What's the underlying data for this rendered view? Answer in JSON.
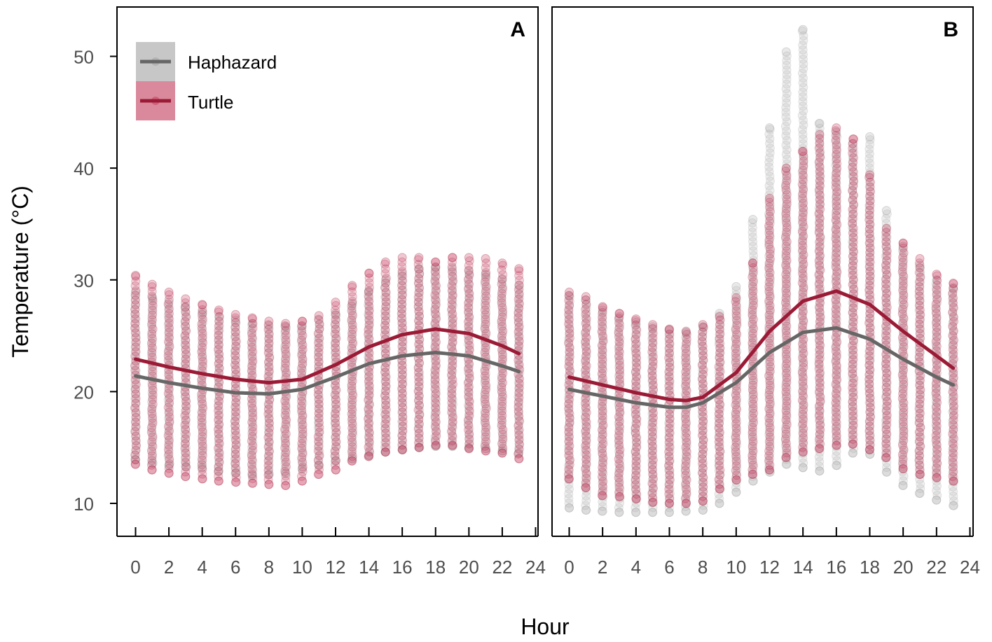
{
  "figure": {
    "ylabel": "Temperature (°C)",
    "xlabel": "Hour"
  },
  "colors": {
    "haphazard": "#666666",
    "haphazard_points": "#a9a9a9",
    "turtle": "#9b1b36",
    "turtle_points": "#c1244a",
    "axis": "#000000",
    "tick_text": "#4d4d4d"
  },
  "chart_data": [
    {
      "panel": "A",
      "type": "scatter",
      "xlim": [
        0,
        24
      ],
      "ylim": [
        7.0,
        54.5
      ],
      "x_ticks": [
        0,
        2,
        4,
        6,
        8,
        10,
        12,
        14,
        16,
        18,
        20,
        22,
        24
      ],
      "y_ticks": [
        10,
        20,
        30,
        40,
        50
      ],
      "grid": false,
      "legend": {
        "placement": "top-left",
        "entries": [
          "Haphazard",
          "Turtle"
        ]
      },
      "series": [
        {
          "name": "Haphazard",
          "fit_line": {
            "x": [
              0,
              2,
              4,
              6,
              8,
              10,
              12,
              14,
              16,
              18,
              20,
              22,
              23
            ],
            "y": [
              21.4,
              20.8,
              20.3,
              19.9,
              19.8,
              20.2,
              21.3,
              22.5,
              23.2,
              23.5,
              23.2,
              22.3,
              21.8
            ]
          },
          "point_range": {
            "x": [
              0,
              1,
              2,
              3,
              4,
              5,
              6,
              7,
              8,
              9,
              10,
              11,
              12,
              13,
              14,
              15,
              16,
              17,
              18,
              19,
              20,
              21,
              22,
              23
            ],
            "min": [
              13.9,
              13.6,
              13.4,
              13.3,
              13.2,
              12.9,
              12.7,
              12.5,
              12.6,
              12.7,
              13.1,
              13.4,
              13.8,
              14.0,
              14.3,
              14.6,
              14.8,
              15.0,
              15.1,
              15.1,
              15.0,
              14.9,
              14.7,
              14.5
            ],
            "max": [
              28.9,
              28.4,
              28.0,
              27.6,
              27.1,
              26.7,
              26.4,
              26.1,
              25.9,
              25.8,
              25.9,
              26.4,
              27.0,
              27.9,
              29.0,
              30.0,
              30.6,
              31.0,
              31.1,
              31.0,
              30.8,
              30.5,
              30.1,
              29.5
            ]
          }
        },
        {
          "name": "Turtle",
          "fit_line": {
            "x": [
              0,
              2,
              4,
              6,
              8,
              10,
              12,
              14,
              16,
              18,
              20,
              22,
              23
            ],
            "y": [
              22.9,
              22.2,
              21.6,
              21.1,
              20.8,
              21.1,
              22.4,
              24.0,
              25.1,
              25.6,
              25.2,
              24.1,
              23.4
            ]
          },
          "point_range": {
            "x": [
              0,
              1,
              2,
              3,
              4,
              5,
              6,
              7,
              8,
              9,
              10,
              11,
              12,
              13,
              14,
              15,
              16,
              17,
              18,
              19,
              20,
              21,
              22,
              23
            ],
            "min": [
              13.5,
              13.0,
              12.7,
              12.4,
              12.2,
              12.0,
              11.9,
              11.8,
              11.7,
              11.6,
              12.0,
              12.6,
              13.0,
              13.8,
              14.2,
              14.6,
              14.8,
              15.0,
              15.2,
              15.2,
              14.9,
              14.7,
              14.5,
              14.0
            ],
            "max": [
              30.4,
              29.6,
              28.9,
              28.3,
              27.8,
              27.3,
              26.9,
              26.6,
              26.3,
              26.1,
              26.3,
              26.8,
              28.0,
              29.5,
              30.6,
              31.6,
              32.0,
              32.0,
              31.6,
              32.0,
              32.0,
              31.9,
              31.5,
              31.0
            ]
          }
        }
      ]
    },
    {
      "panel": "B",
      "type": "scatter",
      "xlim": [
        0,
        24
      ],
      "ylim": [
        7.0,
        54.5
      ],
      "x_ticks": [
        0,
        2,
        4,
        6,
        8,
        10,
        12,
        14,
        16,
        18,
        20,
        22,
        24
      ],
      "y_ticks": [
        10,
        20,
        30,
        40,
        50
      ],
      "grid": false,
      "series": [
        {
          "name": "Haphazard",
          "fit_line": {
            "x": [
              0,
              2,
              4,
              6,
              7,
              8,
              10,
              12,
              14,
              16,
              18,
              20,
              22,
              23
            ],
            "y": [
              20.2,
              19.6,
              19.0,
              18.6,
              18.6,
              19.0,
              20.8,
              23.5,
              25.3,
              25.7,
              24.7,
              22.9,
              21.3,
              20.6
            ]
          },
          "point_range": {
            "x": [
              0,
              1,
              2,
              3,
              4,
              5,
              6,
              7,
              8,
              9,
              10,
              11,
              12,
              13,
              14,
              15,
              16,
              17,
              18,
              19,
              20,
              21,
              22,
              23
            ],
            "min": [
              9.6,
              9.4,
              9.3,
              9.2,
              9.2,
              9.2,
              9.2,
              9.3,
              9.4,
              10.0,
              11.0,
              12.0,
              12.8,
              13.5,
              13.2,
              12.9,
              13.4,
              14.5,
              14.4,
              12.8,
              11.6,
              10.9,
              10.3,
              9.8
            ],
            "max": [
              28.6,
              28.2,
              27.3,
              26.7,
              26.2,
              25.8,
              25.5,
              25.3,
              25.8,
              27.0,
              29.4,
              35.4,
              43.6,
              50.4,
              52.4,
              44.0,
              43.2,
              42.2,
              42.8,
              36.2,
              33.0,
              31.3,
              30.0,
              29.3
            ]
          }
        },
        {
          "name": "Turtle",
          "fit_line": {
            "x": [
              0,
              2,
              4,
              6,
              7,
              8,
              10,
              12,
              14,
              16,
              18,
              20,
              22,
              23
            ],
            "y": [
              21.3,
              20.6,
              19.9,
              19.3,
              19.2,
              19.5,
              21.7,
              25.4,
              28.1,
              29.0,
              27.8,
              25.4,
              23.2,
              22.1
            ]
          },
          "point_range": {
            "x": [
              0,
              1,
              2,
              3,
              4,
              5,
              6,
              7,
              8,
              9,
              10,
              11,
              12,
              13,
              14,
              15,
              16,
              17,
              18,
              19,
              20,
              21,
              22,
              23
            ],
            "min": [
              12.2,
              11.4,
              10.7,
              10.6,
              10.4,
              10.1,
              10.0,
              10.0,
              10.2,
              11.3,
              12.1,
              12.6,
              13.0,
              14.1,
              14.6,
              14.9,
              15.2,
              15.3,
              14.8,
              14.1,
              13.1,
              12.6,
              12.3,
              12.0
            ],
            "max": [
              28.9,
              28.5,
              27.6,
              27.0,
              26.5,
              26.0,
              25.6,
              25.4,
              26.0,
              26.7,
              28.4,
              31.5,
              37.3,
              40.0,
              41.5,
              43.0,
              43.6,
              42.6,
              39.4,
              34.6,
              33.3,
              31.9,
              30.5,
              29.7
            ]
          }
        }
      ]
    }
  ]
}
